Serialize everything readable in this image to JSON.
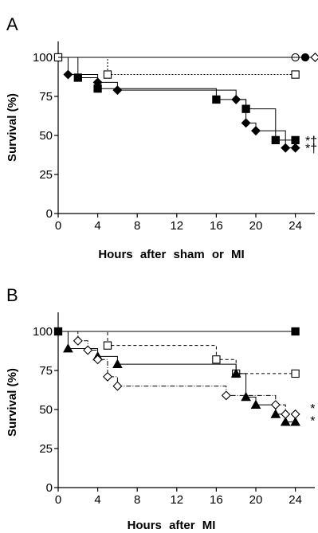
{
  "chart_data": [
    {
      "type": "line",
      "panel_label": "A",
      "title": "",
      "xlabel": "Hours after sham or MI",
      "ylabel": "Survival (%)",
      "xlim": [
        0,
        26
      ],
      "ylim": [
        0,
        110
      ],
      "x_ticks": [
        0,
        4,
        8,
        12,
        16,
        20,
        24
      ],
      "y_ticks": [
        0,
        25,
        50,
        75,
        100
      ],
      "grid": false,
      "legend": "none",
      "series": [
        {
          "x": [
            0,
            25
          ],
          "y": [
            100,
            100
          ],
          "marker": "open-circle",
          "line": "solid",
          "color": "#000000",
          "markers": [
            [
              0,
              100
            ],
            [
              24,
              100
            ]
          ]
        },
        {
          "x": [
            0,
            26
          ],
          "y": [
            100,
            100
          ],
          "marker": "filled-circle",
          "line": "solid",
          "color": "#000000",
          "markers": [
            [
              25,
              100
            ]
          ]
        },
        {
          "x": [
            0,
            26
          ],
          "y": [
            100,
            100
          ],
          "marker": "open-diamond",
          "line": "solid",
          "color": "#000000",
          "markers": [
            [
              26,
              100
            ]
          ]
        },
        {
          "x": [
            0,
            5,
            24
          ],
          "y": [
            100,
            89,
            89
          ],
          "marker": "open-square",
          "line": "dotted",
          "color": "#000000",
          "markers": [
            [
              0,
              100
            ],
            [
              5,
              89
            ],
            [
              24,
              89
            ]
          ]
        },
        {
          "x": [
            0,
            2,
            4,
            16,
            19,
            22,
            24
          ],
          "y": [
            100,
            87,
            80,
            73,
            67,
            47,
            47
          ],
          "marker": "filled-square",
          "line": "solid",
          "color": "#000000",
          "markers": [
            [
              2,
              87
            ],
            [
              4,
              80
            ],
            [
              16,
              73
            ],
            [
              19,
              67
            ],
            [
              22,
              47
            ],
            [
              24,
              47
            ]
          ]
        },
        {
          "x": [
            0,
            1,
            4,
            6,
            18,
            19,
            20,
            23,
            24
          ],
          "y": [
            100,
            89,
            84,
            79,
            73,
            58,
            53,
            42,
            42
          ],
          "marker": "filled-diamond",
          "line": "solid",
          "color": "#000000",
          "markers": [
            [
              1,
              89
            ],
            [
              4,
              84
            ],
            [
              6,
              79
            ],
            [
              18,
              73
            ],
            [
              19,
              58
            ],
            [
              20,
              53
            ],
            [
              23,
              42
            ],
            [
              24,
              42
            ]
          ]
        }
      ],
      "annotations": [
        {
          "text": "*†",
          "x": 25,
          "y": 47
        },
        {
          "text": "*†",
          "x": 25,
          "y": 42
        }
      ]
    },
    {
      "type": "line",
      "panel_label": "B",
      "title": "",
      "xlabel": "Hours after MI",
      "ylabel": "Survival (%)",
      "xlim": [
        0,
        26
      ],
      "ylim": [
        0,
        110
      ],
      "x_ticks": [
        0,
        4,
        8,
        12,
        16,
        20,
        24
      ],
      "y_ticks": [
        0,
        25,
        50,
        75,
        100
      ],
      "grid": false,
      "legend": "none",
      "series": [
        {
          "x": [
            0,
            24
          ],
          "y": [
            100,
            100
          ],
          "marker": "filled-square",
          "line": "solid",
          "color": "#000000",
          "markers": [
            [
              0,
              100
            ],
            [
              24,
              100
            ]
          ]
        },
        {
          "x": [
            0,
            5,
            16,
            18,
            24
          ],
          "y": [
            100,
            91,
            82,
            73,
            73
          ],
          "marker": "open-square",
          "line": "dashed",
          "color": "#000000",
          "markers": [
            [
              5,
              91
            ],
            [
              16,
              82
            ],
            [
              18,
              73
            ],
            [
              24,
              73
            ]
          ]
        },
        {
          "x": [
            0,
            1,
            4,
            6,
            18,
            19,
            20,
            22,
            23,
            24
          ],
          "y": [
            100,
            89,
            84,
            79,
            73,
            58,
            53,
            47,
            42,
            42
          ],
          "marker": "filled-triangle",
          "line": "solid",
          "color": "#000000",
          "markers": [
            [
              1,
              89
            ],
            [
              4,
              84
            ],
            [
              6,
              79
            ],
            [
              18,
              73
            ],
            [
              19,
              58
            ],
            [
              20,
              53
            ],
            [
              22,
              47
            ],
            [
              23,
              42
            ],
            [
              24,
              42
            ]
          ]
        },
        {
          "x": [
            0,
            2,
            3,
            4,
            5,
            6,
            17,
            22,
            23,
            24
          ],
          "y": [
            100,
            94,
            88,
            82,
            71,
            65,
            59,
            53,
            47,
            47
          ],
          "marker": "open-diamond",
          "line": "dashdot",
          "color": "#000000",
          "markers": [
            [
              2,
              94
            ],
            [
              3,
              88
            ],
            [
              4,
              82
            ],
            [
              5,
              71
            ],
            [
              6,
              65
            ],
            [
              17,
              59
            ],
            [
              22,
              53
            ],
            [
              23,
              47
            ],
            [
              24,
              47
            ]
          ]
        }
      ],
      "annotations": [
        {
          "text": "*",
          "x": 25.5,
          "y": 51
        },
        {
          "text": "*",
          "x": 25.5,
          "y": 43
        }
      ]
    }
  ]
}
